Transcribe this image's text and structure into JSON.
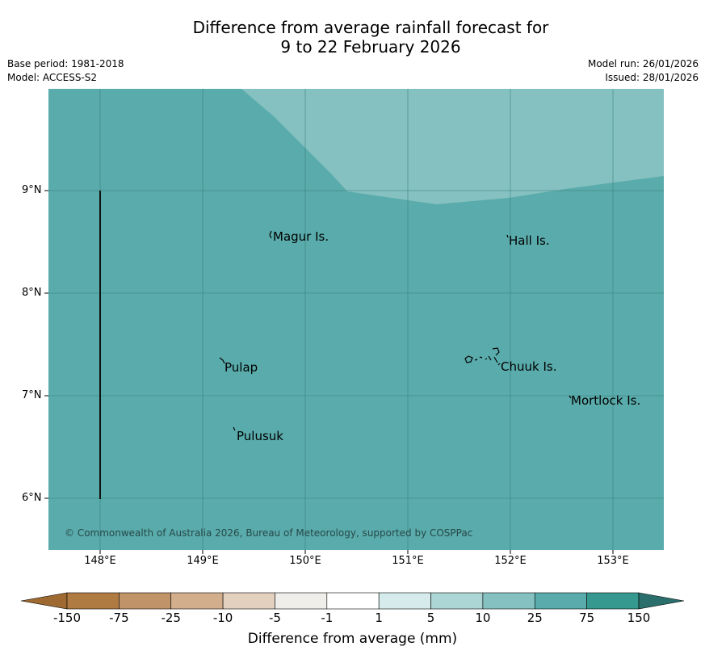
{
  "title": {
    "line1": "Difference from average rainfall forecast for",
    "line2": "9 to 22 February 2026"
  },
  "meta": {
    "base_period": "Base period: 1981-2018",
    "model": "Model: ACCESS-S2",
    "model_run": "Model run: 26/01/2026",
    "issued": "Issued: 28/01/2026"
  },
  "map": {
    "background_color": "#5aabab",
    "high_anomaly_color": "#85c1c0",
    "lat_labels": [
      "9°N",
      "8°N",
      "7°N",
      "6°N"
    ],
    "lon_labels": [
      "148°E",
      "149°E",
      "150°E",
      "151°E",
      "152°E",
      "153°E"
    ],
    "places": [
      "Magur Is.",
      "Hall Is.",
      "Pulap",
      "Chuuk Is.",
      "Mortlock Is.",
      "Pulusuk"
    ],
    "copyright": "© Commonwealth of Australia 2026, Bureau of Meteorology, supported by COSPPac"
  },
  "colorbar": {
    "labels": [
      "-150",
      "-75",
      "-25",
      "-10",
      "-5",
      "-1",
      "1",
      "5",
      "10",
      "25",
      "75",
      "150"
    ],
    "colors": [
      "#b07a43",
      "#c09468",
      "#d2ae8d",
      "#e3d0bf",
      "#f0eeea",
      "#ffffff",
      "#d6ecec",
      "#acd6d5",
      "#85c1c0",
      "#5aabab",
      "#36998f"
    ],
    "low_extend_color": "#9e6a32",
    "high_extend_color": "#2a6f6b",
    "title": "Difference from average (mm)"
  }
}
